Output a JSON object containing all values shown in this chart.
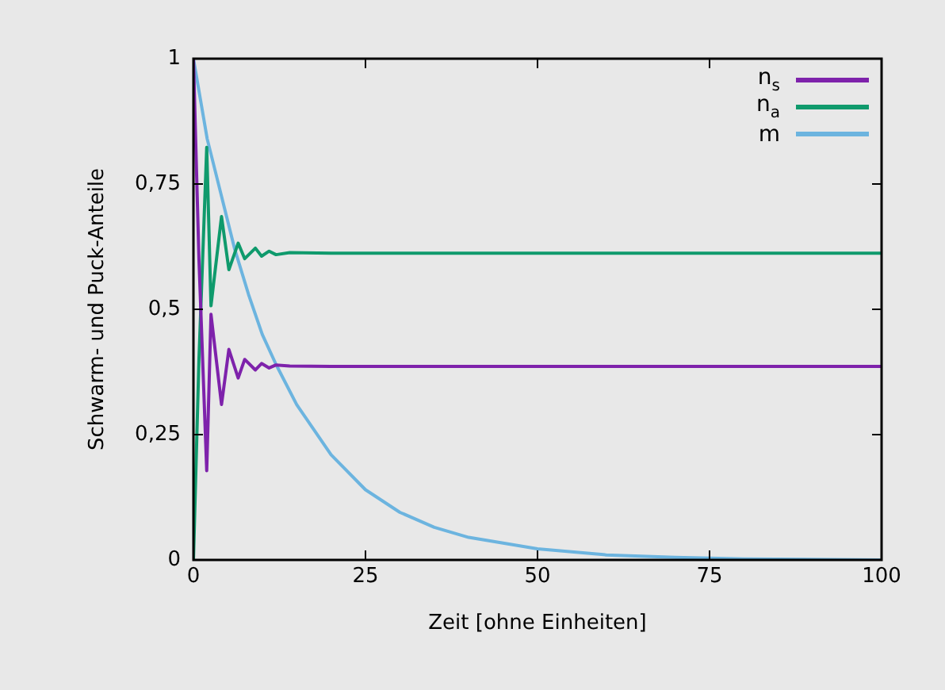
{
  "chart_data": {
    "type": "line",
    "xlabel": "Zeit [ohne Einheiten]",
    "ylabel": "Schwarm- und Puck-Anteile",
    "xlim": [
      0,
      100
    ],
    "xticks": [
      0,
      25,
      50,
      75,
      100
    ],
    "ylim": [
      0,
      1
    ],
    "yticks": [
      0,
      {
        "value": 0.25,
        "label": "0,25"
      },
      {
        "value": 0.5,
        "label": "0,5"
      },
      {
        "value": 0.75,
        "label": "0,75"
      },
      1
    ],
    "grid": false,
    "legend": "top right",
    "marker": "none",
    "line_style": "solid",
    "series": [
      {
        "name": "n$_{s}$",
        "color": "#7e22ab",
        "x": [
          0,
          0.8,
          1.93,
          2.55,
          4.08,
          5.15,
          6.5,
          7.45,
          9.0,
          9.9,
          11,
          12,
          14,
          20,
          100
        ],
        "values": [
          1,
          0.6,
          0.178,
          0.49,
          0.31,
          0.42,
          0.363,
          0.4,
          0.379,
          0.392,
          0.383,
          0.389,
          0.387,
          0.386,
          0.386
        ]
      },
      {
        "name": "n$_{a}$",
        "color": "#0f9a6c",
        "x": [
          0,
          0.8,
          1.93,
          2.55,
          4.08,
          5.15,
          6.5,
          7.45,
          9.0,
          9.9,
          11,
          12,
          14,
          20,
          100
        ],
        "values": [
          0,
          0.4,
          0.823,
          0.507,
          0.685,
          0.579,
          0.632,
          0.601,
          0.622,
          0.606,
          0.616,
          0.609,
          0.613,
          0.612,
          0.612
        ]
      },
      {
        "name": "m",
        "color": "#6cb4df",
        "x": [
          0,
          1,
          2,
          4,
          6,
          8,
          10,
          12,
          15,
          20,
          25,
          30,
          35,
          40,
          50,
          60,
          70,
          80,
          100
        ],
        "values": [
          1,
          0.92,
          0.84,
          0.73,
          0.62,
          0.53,
          0.45,
          0.39,
          0.31,
          0.21,
          0.14,
          0.095,
          0.065,
          0.045,
          0.022,
          0.01,
          0.005,
          0.002,
          0
        ]
      }
    ]
  }
}
